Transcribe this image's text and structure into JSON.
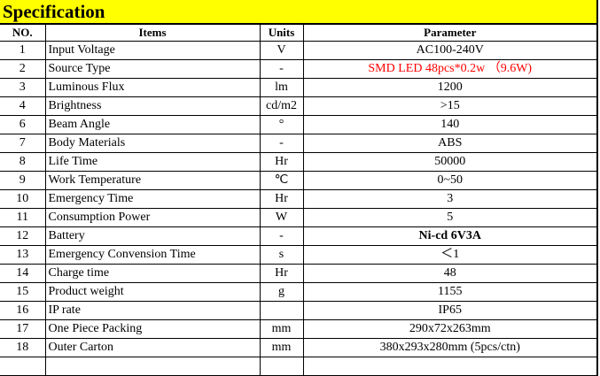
{
  "title": "Specification",
  "headers": [
    "NO.",
    "Items",
    "Units",
    "Parameter"
  ],
  "rows": [
    {
      "no": "1",
      "item": "Input Voltage",
      "unit": "V",
      "param": "AC100-240V"
    },
    {
      "no": "2",
      "item": "Source  Type",
      "unit": "-",
      "param": "SMD LED  48pcs*0.2w （9.6W)",
      "style": "red"
    },
    {
      "no": "3",
      "item": "Luminous Flux",
      "unit": "lm",
      "param": "1200"
    },
    {
      "no": "4",
      "item": "Brightness",
      "unit": "cd/m2",
      "param": ">15"
    },
    {
      "no": "6",
      "item": "Beam Angle",
      "unit": "°",
      "param": "140"
    },
    {
      "no": "7",
      "item": "Body Materials",
      "unit": "-",
      "param": "ABS"
    },
    {
      "no": "8",
      "item": "Life Time",
      "unit": "Hr",
      "param": "50000"
    },
    {
      "no": "9",
      "item": "Work Temperature",
      "unit": "℃",
      "param": "0~50"
    },
    {
      "no": "10",
      "item": "Emergency Time",
      "unit": "Hr",
      "param": "3"
    },
    {
      "no": "11",
      "item": "Consumption Power",
      "unit": "W",
      "param": "5"
    },
    {
      "no": "12",
      "item": "Battery",
      "unit": "-",
      "param": "Ni-cd 6V3A",
      "style": "bold"
    },
    {
      "no": "13",
      "item": "Emergency Convension Time",
      "unit": "s",
      "param": "＜1"
    },
    {
      "no": "14",
      "item": "Charge time",
      "unit": "Hr",
      "param": "48"
    },
    {
      "no": "15",
      "item": "Product weight",
      "unit": "g",
      "param": "1155"
    },
    {
      "no": "16",
      "item": "IP rate",
      "unit": "",
      "param": "IP65"
    },
    {
      "no": "17",
      "item": "One Piece Packing",
      "unit": "mm",
      "param": "290x72x263mm"
    },
    {
      "no": "18",
      "item": "Outer Carton",
      "unit": "mm",
      "param": "380x293x280mm (5pcs/ctn)"
    }
  ],
  "colors": {
    "title_bg": "#ffff00",
    "highlight_text": "#ff0000"
  }
}
